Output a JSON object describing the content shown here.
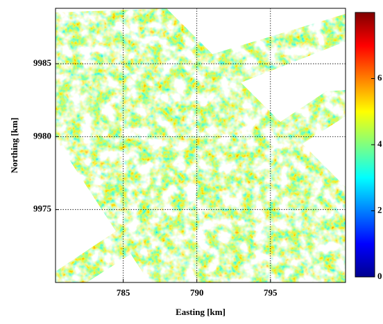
{
  "chart_data": {
    "type": "image",
    "xlabel": "Easting [km]",
    "ylabel": "Northing [km]",
    "xlim": [
      780.4,
      800.1
    ],
    "ylim": [
      9970,
      9988.8
    ],
    "xticks": [
      785,
      790,
      795
    ],
    "yticks": [
      9975,
      9980,
      9985
    ],
    "grid": true,
    "colormap": "jet",
    "clim": [
      0,
      8
    ],
    "cticks": [
      0,
      2,
      4,
      6
    ]
  }
}
